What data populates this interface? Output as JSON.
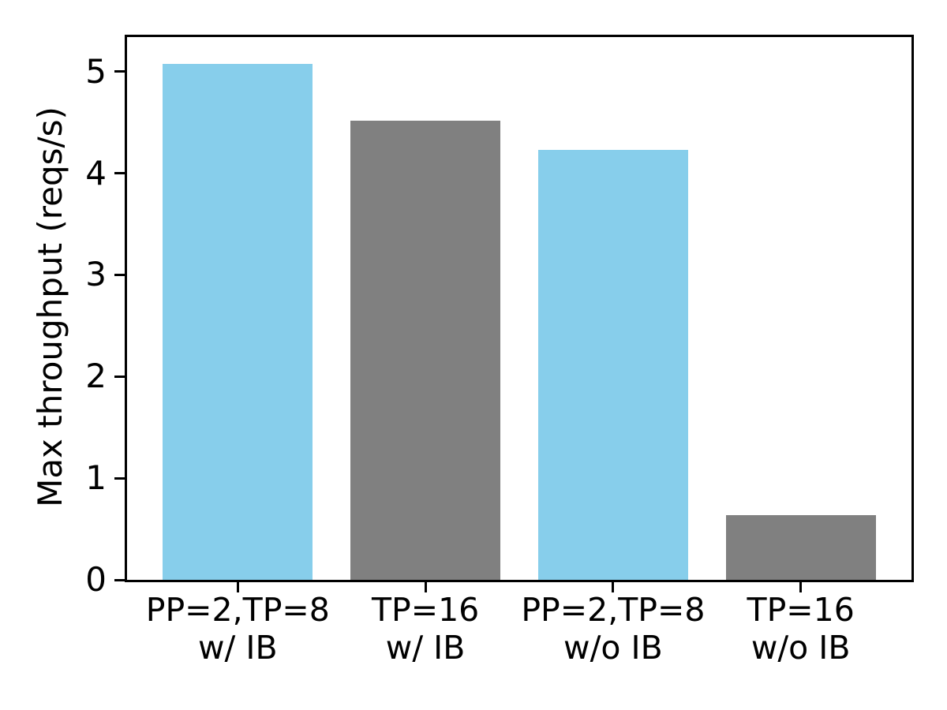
{
  "chart_data": {
    "type": "bar",
    "categories": [
      "PP=2,TP=8 w/ IB",
      "TP=16 w/ IB",
      "PP=2,TP=8 w/o IB",
      "TP=16 w/o IB"
    ],
    "categories_line1": [
      "PP=2,TP=8",
      "TP=16",
      "PP=2,TP=8",
      "TP=16"
    ],
    "categories_line2": [
      "w/ IB",
      "w/ IB",
      "w/o IB",
      "w/o IB"
    ],
    "values": [
      5.08,
      4.52,
      4.23,
      0.64
    ],
    "bar_colors": [
      "#87ceeb",
      "#808080",
      "#87ceeb",
      "#808080"
    ],
    "title": "",
    "xlabel": "",
    "ylabel": "Max throughput (reqs/s)",
    "ylim": [
      0,
      5.34
    ],
    "yticks": [
      0,
      1,
      2,
      3,
      4,
      5
    ],
    "xlim": [
      -0.59,
      3.59
    ],
    "bar_width": 0.8,
    "grid": false,
    "legend": false,
    "colors": {
      "highlight_bar": "#87ceeb",
      "baseline_bar": "#808080",
      "axis": "#000000",
      "text": "#000000",
      "background": "#ffffff"
    }
  }
}
